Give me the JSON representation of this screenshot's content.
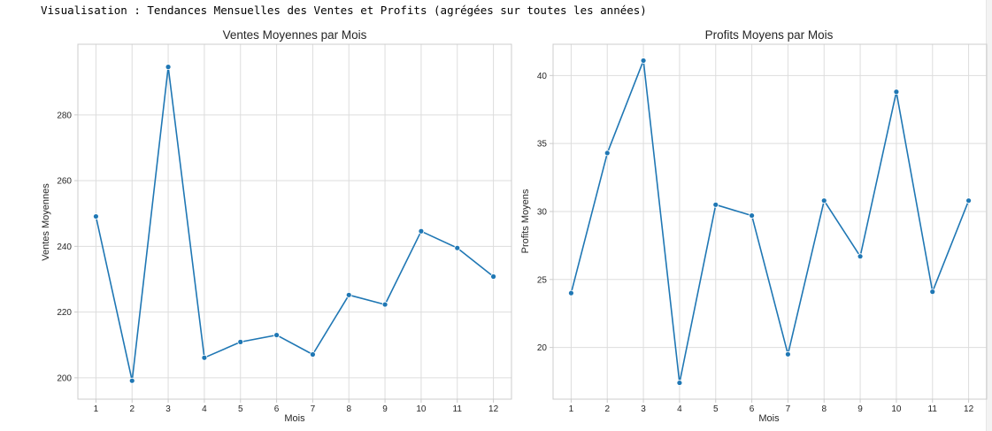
{
  "header": {
    "text": "Visualisation : Tendances Mensuelles des Ventes et Profits (agrégées sur toutes les années)"
  },
  "colors": {
    "line": "#1f77b4",
    "grid": "#dddddd",
    "frame": "#cccccc",
    "text": "#262626"
  },
  "chart_data": [
    {
      "type": "line",
      "title": "Ventes Moyennes par Mois",
      "xlabel": "Mois",
      "ylabel": "Ventes Moyennes",
      "x": [
        1,
        2,
        3,
        4,
        5,
        6,
        7,
        8,
        9,
        10,
        11,
        12
      ],
      "values": [
        249.1,
        199.1,
        294.6,
        206.1,
        210.9,
        213.0,
        207.1,
        225.2,
        222.3,
        244.6,
        239.5,
        230.8
      ],
      "xlim": [
        0.5,
        12.5
      ],
      "ylim": [
        193.5,
        301.5
      ],
      "xticks": [
        1,
        2,
        3,
        4,
        5,
        6,
        7,
        8,
        9,
        10,
        11,
        12
      ],
      "yticks": [
        200,
        220,
        240,
        260,
        280
      ],
      "grid": true
    },
    {
      "type": "line",
      "title": "Profits Moyens par Mois",
      "xlabel": "Mois",
      "ylabel": "Profits Moyens",
      "x": [
        1,
        2,
        3,
        4,
        5,
        6,
        7,
        8,
        9,
        10,
        11,
        12
      ],
      "values": [
        24.0,
        34.3,
        41.1,
        17.4,
        30.5,
        29.7,
        19.5,
        30.8,
        26.7,
        38.8,
        24.1,
        30.8
      ],
      "xlim": [
        0.5,
        12.5
      ],
      "ylim": [
        16.2,
        42.3
      ],
      "xticks": [
        1,
        2,
        3,
        4,
        5,
        6,
        7,
        8,
        9,
        10,
        11,
        12
      ],
      "yticks": [
        20,
        25,
        30,
        35,
        40
      ],
      "grid": true
    }
  ]
}
